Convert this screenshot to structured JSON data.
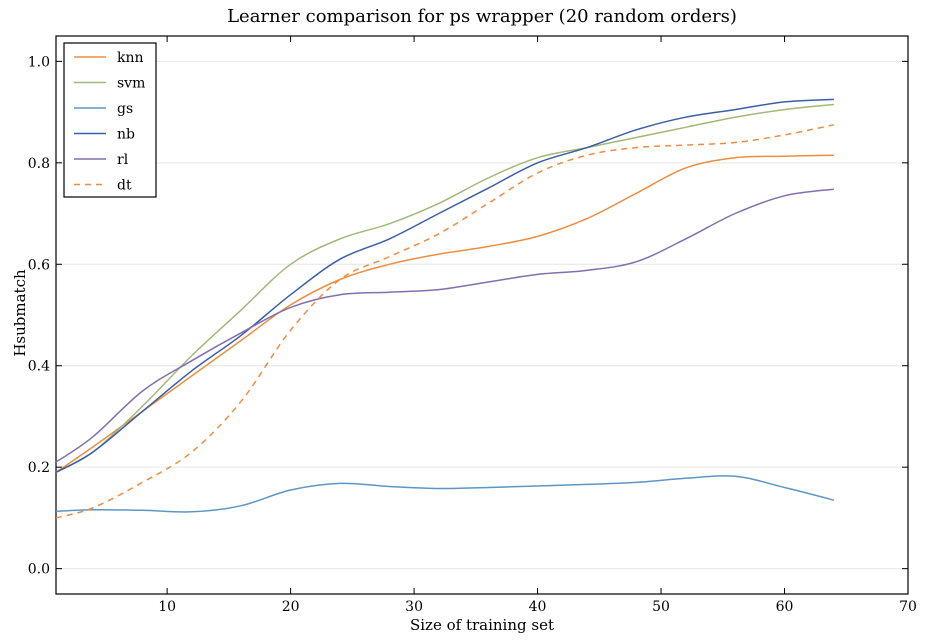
{
  "chart_data": {
    "type": "line",
    "title": "Learner comparison for ps wrapper (20 random orders)",
    "xlabel": "Size of training set",
    "ylabel": "Hsubmatch",
    "xlim": [
      1,
      70
    ],
    "ylim": [
      -0.05,
      1.05
    ],
    "x_ticks": [
      10,
      20,
      30,
      40,
      50,
      60,
      70
    ],
    "y_ticks": [
      0.0,
      0.2,
      0.4,
      0.6,
      0.8,
      1.0
    ],
    "y_tick_labels": [
      "0.0",
      "0.2",
      "0.4",
      "0.6",
      "0.8",
      "1.0"
    ],
    "grid": "horizontal, light",
    "legend_position": "upper left",
    "series": [
      {
        "name": "knn",
        "color": "#ee8d3f",
        "dash": "solid",
        "x": [
          1,
          4,
          8,
          12,
          16,
          20,
          24,
          28,
          32,
          36,
          40,
          44,
          48,
          52,
          56,
          60,
          64
        ],
        "y": [
          0.19,
          0.24,
          0.31,
          0.38,
          0.45,
          0.52,
          0.57,
          0.6,
          0.62,
          0.635,
          0.655,
          0.69,
          0.74,
          0.79,
          0.81,
          0.813,
          0.815
        ]
      },
      {
        "name": "svm",
        "color": "#a2b879",
        "dash": "solid",
        "x": [
          1,
          4,
          8,
          12,
          16,
          20,
          24,
          28,
          32,
          36,
          40,
          44,
          48,
          52,
          56,
          60,
          64
        ],
        "y": [
          0.19,
          0.23,
          0.32,
          0.42,
          0.51,
          0.6,
          0.65,
          0.68,
          0.72,
          0.77,
          0.81,
          0.83,
          0.85,
          0.87,
          0.89,
          0.905,
          0.915
        ]
      },
      {
        "name": "gs",
        "color": "#5d96c2",
        "dash": "solid",
        "x": [
          1,
          4,
          8,
          12,
          16,
          20,
          24,
          28,
          32,
          36,
          40,
          44,
          48,
          52,
          56,
          60,
          64
        ],
        "y": [
          0.113,
          0.116,
          0.115,
          0.112,
          0.124,
          0.155,
          0.168,
          0.162,
          0.158,
          0.16,
          0.163,
          0.166,
          0.17,
          0.178,
          0.182,
          0.16,
          0.135
        ]
      },
      {
        "name": "nb",
        "color": "#3a5ea8",
        "dash": "solid",
        "x": [
          1,
          4,
          8,
          12,
          16,
          20,
          24,
          28,
          32,
          36,
          40,
          44,
          48,
          52,
          56,
          60,
          64
        ],
        "y": [
          0.19,
          0.23,
          0.31,
          0.39,
          0.46,
          0.54,
          0.61,
          0.65,
          0.7,
          0.75,
          0.8,
          0.83,
          0.865,
          0.89,
          0.905,
          0.92,
          0.925
        ]
      },
      {
        "name": "rl",
        "color": "#8070b0",
        "dash": "solid",
        "x": [
          1,
          4,
          8,
          12,
          16,
          20,
          24,
          28,
          32,
          36,
          40,
          44,
          48,
          52,
          56,
          60,
          64
        ],
        "y": [
          0.21,
          0.26,
          0.35,
          0.41,
          0.465,
          0.515,
          0.54,
          0.545,
          0.55,
          0.565,
          0.58,
          0.588,
          0.605,
          0.65,
          0.7,
          0.735,
          0.748
        ]
      },
      {
        "name": "dt",
        "color": "#ee8d3f",
        "dash": "dashed",
        "x": [
          1,
          4,
          8,
          12,
          16,
          20,
          24,
          28,
          32,
          36,
          40,
          44,
          48,
          52,
          56,
          60,
          64
        ],
        "y": [
          0.1,
          0.12,
          0.17,
          0.23,
          0.33,
          0.47,
          0.57,
          0.615,
          0.66,
          0.72,
          0.78,
          0.815,
          0.83,
          0.835,
          0.84,
          0.855,
          0.875
        ]
      }
    ]
  }
}
